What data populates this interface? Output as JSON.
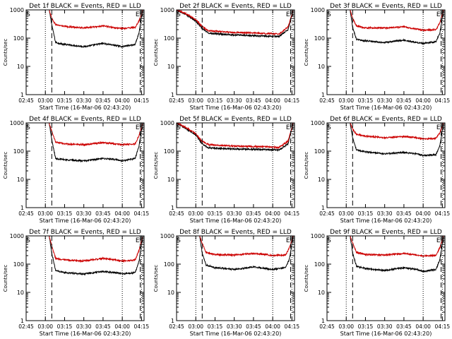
{
  "figure": {
    "colors": {
      "events": "#000000",
      "lld": "#cc0000",
      "axes": "#000000"
    }
  },
  "chart_data": [
    {
      "type": "line",
      "title": "Det 1f BLACK = Events, RED = LLD",
      "xlabel": "Start Time (16-Mar-06 02:43:20)",
      "ylabel": "Counts/sec",
      "yscale": "log",
      "ylim": [
        1,
        1000
      ],
      "x_ticks": [
        "02:45",
        "03:00",
        "03:15",
        "03:30",
        "03:45",
        "04:00",
        "04:15"
      ],
      "y_ticks": [
        "1",
        "10",
        "100",
        "1000"
      ],
      "markers": [
        "S",
        "E",
        "S"
      ],
      "dotted_lines": [
        "03:00",
        "04:00",
        "04:15"
      ],
      "dashed_lines": [
        "03:05",
        "04:14"
      ],
      "series": [
        {
          "name": "Events",
          "x": [
            "03:03",
            "03:05",
            "03:08",
            "03:15",
            "03:30",
            "03:45",
            "03:55",
            "04:00",
            "04:10",
            "04:13",
            "04:16"
          ],
          "y": [
            1000,
            300,
            70,
            60,
            50,
            65,
            55,
            50,
            60,
            150,
            1000
          ]
        },
        {
          "name": "LLD",
          "x": [
            "03:03",
            "03:05",
            "03:08",
            "03:15",
            "03:30",
            "03:45",
            "03:55",
            "04:00",
            "04:10",
            "04:13",
            "04:16"
          ],
          "y": [
            1000,
            500,
            300,
            260,
            230,
            270,
            230,
            220,
            240,
            400,
            1000
          ]
        }
      ]
    },
    {
      "type": "line",
      "title": "Det 2f BLACK = Events, RED = LLD",
      "xlabel": "Start Time (16-Mar-06 02:43:20)",
      "ylabel": "Counts/sec",
      "yscale": "log",
      "ylim": [
        1,
        1000
      ],
      "x_ticks": [
        "02:45",
        "03:00",
        "03:15",
        "03:30",
        "03:45",
        "04:00",
        "04:15"
      ],
      "y_ticks": [
        "1",
        "10",
        "100",
        "1000"
      ],
      "markers": [
        "S",
        "E",
        "S"
      ],
      "dotted_lines": [
        "03:00",
        "04:00",
        "04:15"
      ],
      "dashed_lines": [
        "03:05",
        "04:14"
      ],
      "series": [
        {
          "name": "Events",
          "x": [
            "02:45",
            "02:52",
            "03:00",
            "03:05",
            "03:10",
            "03:30",
            "03:50",
            "04:05",
            "04:12",
            "04:16"
          ],
          "y": [
            1000,
            700,
            400,
            220,
            150,
            130,
            120,
            115,
            200,
            1000
          ]
        },
        {
          "name": "LLD",
          "x": [
            "02:45",
            "02:52",
            "03:00",
            "03:05",
            "03:10",
            "03:30",
            "03:50",
            "04:05",
            "04:12",
            "04:16"
          ],
          "y": [
            1000,
            750,
            450,
            260,
            180,
            160,
            150,
            140,
            250,
            1000
          ]
        }
      ]
    },
    {
      "type": "line",
      "title": "Det 3f BLACK = Events, RED = LLD",
      "xlabel": "Start Time (16-Mar-06 02:43:20)",
      "ylabel": "Counts/sec",
      "yscale": "log",
      "ylim": [
        1,
        1000
      ],
      "x_ticks": [
        "02:45",
        "03:00",
        "03:15",
        "03:30",
        "03:45",
        "04:00",
        "04:15"
      ],
      "y_ticks": [
        "1",
        "10",
        "100",
        "1000"
      ],
      "markers": [
        "S",
        "E",
        "S"
      ],
      "dotted_lines": [
        "03:00",
        "04:00",
        "04:15"
      ],
      "dashed_lines": [
        "03:05",
        "04:14"
      ],
      "series": [
        {
          "name": "Events",
          "x": [
            "03:03",
            "03:05",
            "03:08",
            "03:15",
            "03:30",
            "03:45",
            "03:55",
            "04:00",
            "04:10",
            "04:13",
            "04:16"
          ],
          "y": [
            1000,
            250,
            90,
            80,
            70,
            85,
            70,
            65,
            75,
            150,
            1000
          ]
        },
        {
          "name": "LLD",
          "x": [
            "03:03",
            "03:05",
            "03:08",
            "03:15",
            "03:30",
            "03:45",
            "03:55",
            "04:00",
            "04:10",
            "04:13",
            "04:16"
          ],
          "y": [
            1000,
            500,
            270,
            230,
            230,
            250,
            210,
            190,
            200,
            350,
            1000
          ]
        }
      ]
    },
    {
      "type": "line",
      "title": "Det 4f BLACK = Events, RED = LLD",
      "xlabel": "Start Time (16-Mar-06 02:43:20)",
      "ylabel": "Counts/sec",
      "yscale": "log",
      "ylim": [
        1,
        1000
      ],
      "x_ticks": [
        "02:45",
        "03:00",
        "03:15",
        "03:30",
        "03:45",
        "04:00",
        "04:15"
      ],
      "y_ticks": [
        "1",
        "10",
        "100",
        "1000"
      ],
      "markers": [
        "S",
        "E",
        "S"
      ],
      "dotted_lines": [
        "03:00",
        "04:00",
        "04:15"
      ],
      "dashed_lines": [
        "03:05",
        "04:14"
      ],
      "series": [
        {
          "name": "Events",
          "x": [
            "03:03",
            "03:05",
            "03:08",
            "03:15",
            "03:30",
            "03:45",
            "03:55",
            "04:00",
            "04:10",
            "04:13",
            "04:16"
          ],
          "y": [
            1000,
            250,
            55,
            50,
            45,
            55,
            50,
            45,
            55,
            150,
            1000
          ]
        },
        {
          "name": "LLD",
          "x": [
            "03:03",
            "03:05",
            "03:08",
            "03:15",
            "03:30",
            "03:45",
            "03:55",
            "04:00",
            "04:10",
            "04:13",
            "04:16"
          ],
          "y": [
            1000,
            500,
            210,
            180,
            170,
            200,
            180,
            170,
            180,
            350,
            1000
          ]
        }
      ]
    },
    {
      "type": "line",
      "title": "Det 5f BLACK = Events, RED = LLD",
      "xlabel": "Start Time (16-Mar-06 02:43:20)",
      "ylabel": "Counts/sec",
      "yscale": "log",
      "ylim": [
        1,
        1000
      ],
      "x_ticks": [
        "02:45",
        "03:00",
        "03:15",
        "03:30",
        "03:45",
        "04:00",
        "04:15"
      ],
      "y_ticks": [
        "1",
        "10",
        "100",
        "1000"
      ],
      "markers": [
        "S",
        "E",
        "S"
      ],
      "dotted_lines": [
        "03:00",
        "04:00",
        "04:15"
      ],
      "dashed_lines": [
        "03:05",
        "04:14"
      ],
      "series": [
        {
          "name": "Events",
          "x": [
            "02:45",
            "02:52",
            "03:00",
            "03:05",
            "03:10",
            "03:30",
            "03:50",
            "04:05",
            "04:12",
            "04:16"
          ],
          "y": [
            1000,
            650,
            380,
            180,
            130,
            120,
            115,
            110,
            180,
            1000
          ]
        },
        {
          "name": "LLD",
          "x": [
            "02:45",
            "02:52",
            "03:00",
            "03:05",
            "03:10",
            "03:30",
            "03:50",
            "04:05",
            "04:12",
            "04:16"
          ],
          "y": [
            1000,
            700,
            420,
            220,
            170,
            150,
            145,
            135,
            230,
            1000
          ]
        }
      ]
    },
    {
      "type": "line",
      "title": "Det 6f BLACK = Events, RED = LLD",
      "xlabel": "Start Time (16-Mar-06 02:43:20)",
      "ylabel": "Counts/sec",
      "yscale": "log",
      "ylim": [
        1,
        1000
      ],
      "x_ticks": [
        "02:45",
        "03:00",
        "03:15",
        "03:30",
        "03:45",
        "04:00",
        "04:15"
      ],
      "y_ticks": [
        "1",
        "10",
        "100",
        "1000"
      ],
      "markers": [
        "S",
        "E",
        "S"
      ],
      "dotted_lines": [
        "03:00",
        "04:00",
        "04:15"
      ],
      "dashed_lines": [
        "03:05",
        "04:14"
      ],
      "series": [
        {
          "name": "Events",
          "x": [
            "03:03",
            "03:05",
            "03:08",
            "03:15",
            "03:30",
            "03:45",
            "03:55",
            "04:00",
            "04:10",
            "04:13",
            "04:16"
          ],
          "y": [
            1000,
            300,
            110,
            95,
            80,
            90,
            80,
            70,
            75,
            150,
            1000
          ]
        },
        {
          "name": "LLD",
          "x": [
            "03:03",
            "03:05",
            "03:08",
            "03:15",
            "03:30",
            "03:45",
            "03:55",
            "04:00",
            "04:10",
            "04:13",
            "04:16"
          ],
          "y": [
            1000,
            600,
            400,
            340,
            300,
            330,
            300,
            270,
            280,
            450,
            1000
          ]
        }
      ]
    },
    {
      "type": "line",
      "title": "Det 7f BLACK = Events, RED = LLD",
      "xlabel": "Start Time (16-Mar-06 02:43:20)",
      "ylabel": "Counts/sec",
      "yscale": "log",
      "ylim": [
        1,
        1000
      ],
      "x_ticks": [
        "02:45",
        "03:00",
        "03:15",
        "03:30",
        "03:45",
        "04:00",
        "04:15"
      ],
      "y_ticks": [
        "1",
        "10",
        "100",
        "1000"
      ],
      "markers": [
        "S",
        "E",
        "S"
      ],
      "dotted_lines": [
        "03:00",
        "04:00",
        "04:15"
      ],
      "dashed_lines": [
        "03:05",
        "04:14"
      ],
      "series": [
        {
          "name": "Events",
          "x": [
            "03:03",
            "03:05",
            "03:08",
            "03:15",
            "03:30",
            "03:45",
            "03:55",
            "04:00",
            "04:10",
            "04:13",
            "04:16"
          ],
          "y": [
            1000,
            250,
            60,
            50,
            45,
            55,
            50,
            45,
            50,
            120,
            1000
          ]
        },
        {
          "name": "LLD",
          "x": [
            "03:03",
            "03:05",
            "03:08",
            "03:15",
            "03:30",
            "03:45",
            "03:55",
            "04:00",
            "04:10",
            "04:13",
            "04:16"
          ],
          "y": [
            1000,
            450,
            160,
            140,
            130,
            160,
            140,
            130,
            140,
            300,
            1000
          ]
        }
      ]
    },
    {
      "type": "line",
      "title": "Det 8f BLACK = Events, RED = LLD",
      "xlabel": "Start Time (16-Mar-06 02:43:20)",
      "ylabel": "Counts/sec",
      "yscale": "log",
      "ylim": [
        1,
        1000
      ],
      "x_ticks": [
        "02:45",
        "03:00",
        "03:15",
        "03:30",
        "03:45",
        "04:00",
        "04:15"
      ],
      "y_ticks": [
        "1",
        "10",
        "100",
        "1000"
      ],
      "markers": [
        "S",
        "E",
        "S"
      ],
      "dotted_lines": [
        "03:00",
        "04:00",
        "04:15"
      ],
      "dashed_lines": [
        "03:05",
        "04:14"
      ],
      "series": [
        {
          "name": "Events",
          "x": [
            "03:03",
            "03:05",
            "03:08",
            "03:15",
            "03:30",
            "03:45",
            "03:55",
            "04:00",
            "04:10",
            "04:13",
            "04:16"
          ],
          "y": [
            1000,
            250,
            95,
            75,
            65,
            80,
            70,
            65,
            75,
            150,
            1000
          ]
        },
        {
          "name": "LLD",
          "x": [
            "03:03",
            "03:05",
            "03:08",
            "03:15",
            "03:30",
            "03:45",
            "03:55",
            "04:00",
            "04:10",
            "04:13",
            "04:16"
          ],
          "y": [
            1000,
            550,
            260,
            220,
            210,
            240,
            220,
            200,
            210,
            380,
            1000
          ]
        }
      ]
    },
    {
      "type": "line",
      "title": "Det 9f BLACK = Events, RED = LLD",
      "xlabel": "Start Time (16-Mar-06 02:43:20)",
      "ylabel": "Counts/sec",
      "yscale": "log",
      "ylim": [
        1,
        1000
      ],
      "x_ticks": [
        "02:45",
        "03:00",
        "03:15",
        "03:30",
        "03:45",
        "04:00",
        "04:15"
      ],
      "y_ticks": [
        "1",
        "10",
        "100",
        "1000"
      ],
      "markers": [
        "S",
        "E",
        "S"
      ],
      "dotted_lines": [
        "03:00",
        "04:00",
        "04:15"
      ],
      "dashed_lines": [
        "03:05",
        "04:14"
      ],
      "series": [
        {
          "name": "Events",
          "x": [
            "03:03",
            "03:05",
            "03:08",
            "03:15",
            "03:30",
            "03:45",
            "03:55",
            "04:00",
            "04:10",
            "04:13",
            "04:16"
          ],
          "y": [
            1000,
            250,
            85,
            70,
            60,
            75,
            65,
            55,
            65,
            140,
            1000
          ]
        },
        {
          "name": "LLD",
          "x": [
            "03:03",
            "03:05",
            "03:08",
            "03:15",
            "03:30",
            "03:45",
            "03:55",
            "04:00",
            "04:10",
            "04:13",
            "04:16"
          ],
          "y": [
            1000,
            550,
            260,
            220,
            210,
            240,
            210,
            195,
            205,
            380,
            1000
          ]
        }
      ]
    }
  ]
}
